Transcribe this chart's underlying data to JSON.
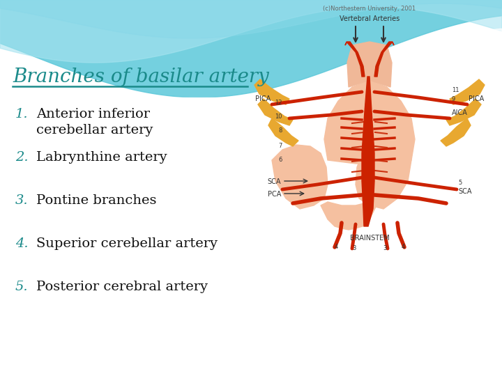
{
  "title": "Branches of basilar artery",
  "title_color": "#1a8a8a",
  "title_fontsize": 20,
  "items": [
    {
      "num": "1.",
      "text": "Anterior inferior\ncerebellar artery"
    },
    {
      "num": "2.",
      "text": "Labrynthine artery"
    },
    {
      "num": "3.",
      "text": "Pontine branches"
    },
    {
      "num": "4.",
      "text": "Superior cerebellar artery"
    },
    {
      "num": "5.",
      "text": "Posterior cerebral artery"
    }
  ],
  "item_fontsize": 14,
  "item_text_color": "#111111",
  "num_color": "#1a8a8a",
  "wave_bg_color": "#7dd4e0",
  "wave_light_color": "#b8eaf0",
  "white_color": "#ffffff",
  "brainstem_color": "#f5c8a8",
  "artery_color": "#cc2200",
  "nerve_color": "#e8a830",
  "label_color": "#333333",
  "diagram_labels": {
    "brainstem": "BRAINSTEM",
    "pca_left": "PCA",
    "sca_left": "SCA",
    "sca_right": "SCA",
    "aica": "AICA",
    "pica_left": "PICA",
    "pica_right": "PICA",
    "vertebral": "Vertebral Arteries",
    "copyright": "(c)Northestern University, 2001"
  }
}
